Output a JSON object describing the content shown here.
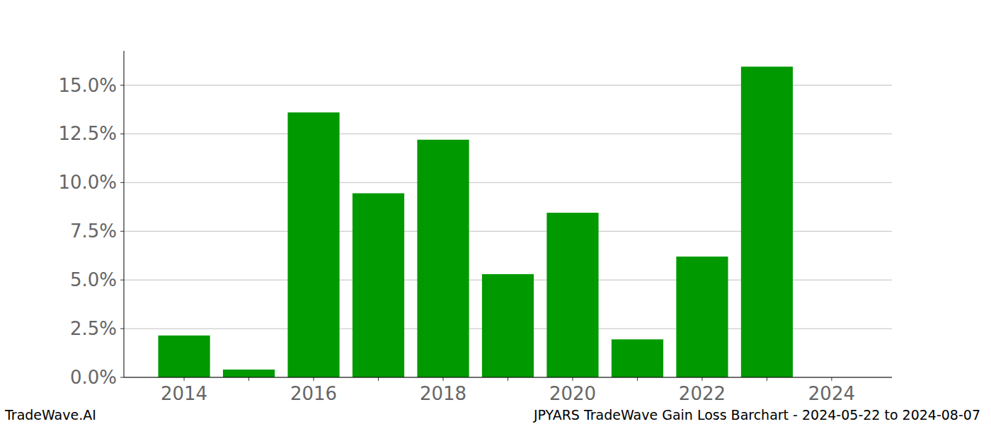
{
  "chart_data": {
    "type": "bar",
    "title": "JPYARS TradeWave Gain Loss Barchart - 2024-05-22 to 2024-08-07",
    "annotations": [
      "TradeWave.AI"
    ],
    "categories": [
      "2014",
      null,
      "2016",
      null,
      "2018",
      null,
      "2020",
      null,
      "2022",
      null,
      "2024"
    ],
    "values": [
      2.15,
      0.4,
      13.6,
      9.45,
      12.2,
      5.3,
      8.45,
      1.95,
      6.2,
      15.95,
      0
    ],
    "color": "#009900",
    "ylim": [
      0,
      16.76
    ],
    "yticks": [
      {
        "value": 0,
        "label": "0.0%"
      },
      {
        "value": 2.5,
        "label": "2.5%"
      },
      {
        "value": 5,
        "label": "5.0%"
      },
      {
        "value": 7.5,
        "label": "7.5%"
      },
      {
        "value": 10,
        "label": "10.0%"
      },
      {
        "value": 12.5,
        "label": "12.5%"
      },
      {
        "value": 15,
        "label": "15.0%"
      }
    ],
    "grid": true
  }
}
